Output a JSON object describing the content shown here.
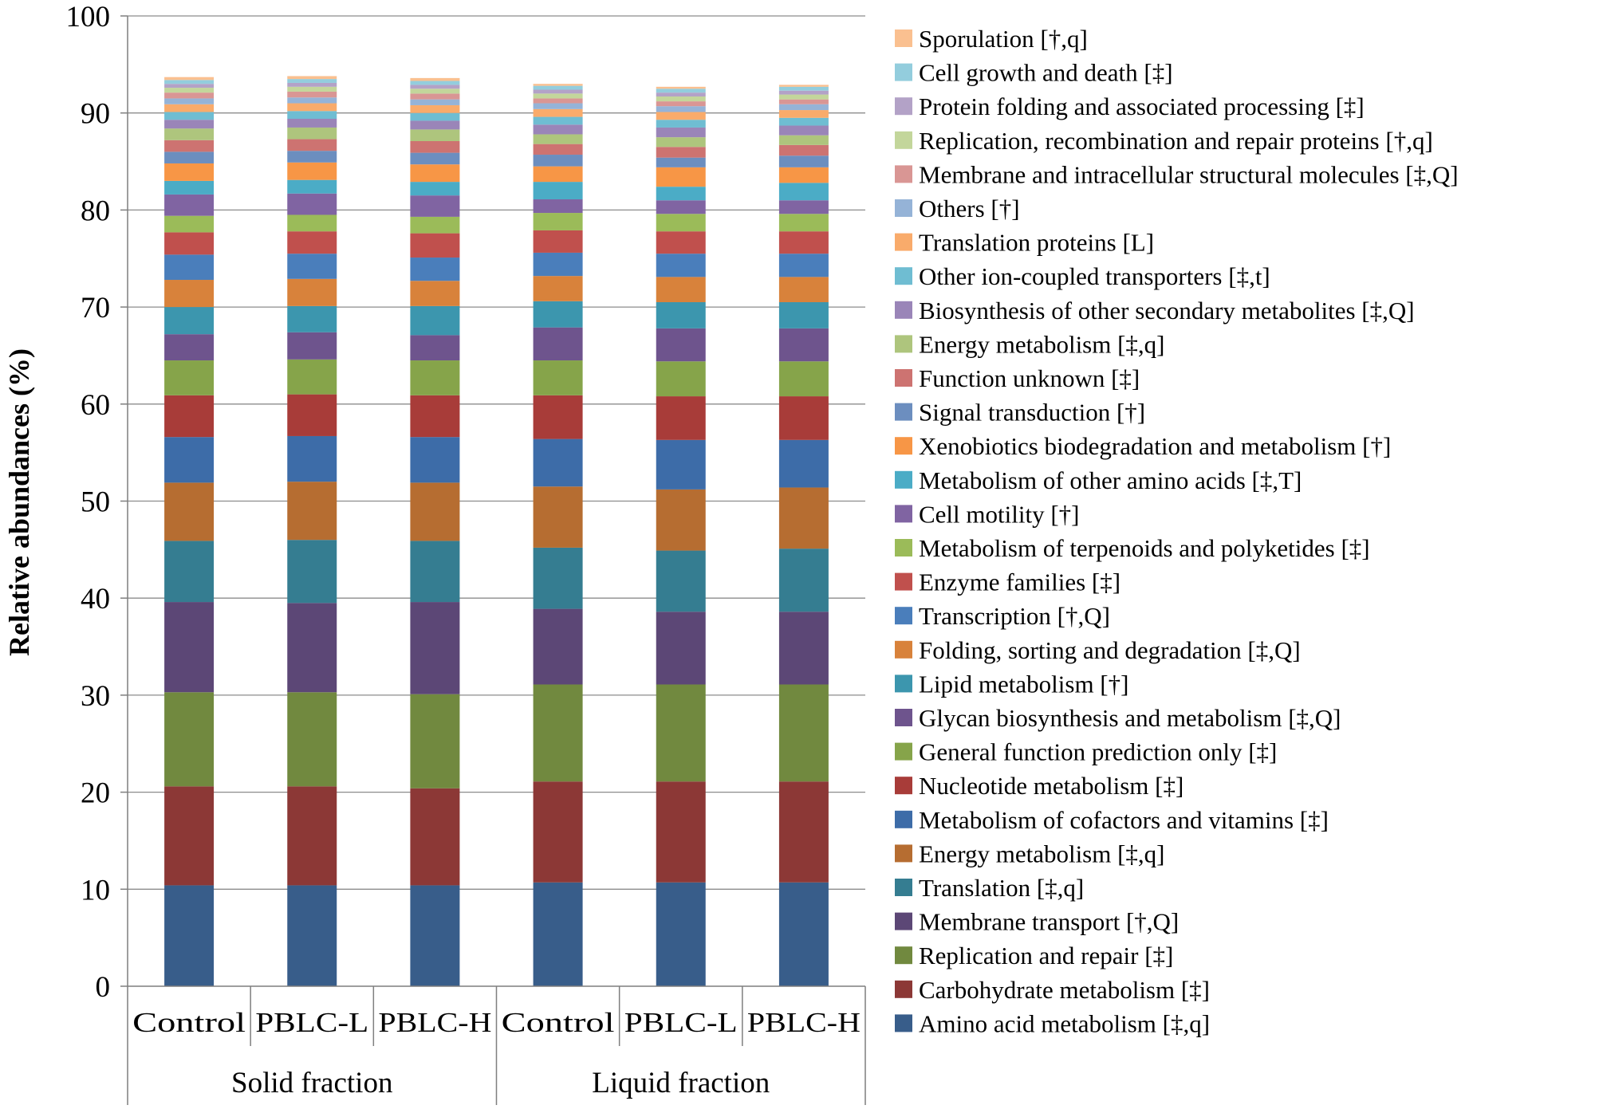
{
  "chart_data": {
    "type": "bar",
    "stacked": true,
    "ylabel": "Relative abundances (%)",
    "ylim": [
      0,
      100
    ],
    "ytick_step": 10,
    "grid": "horizontal major gridlines",
    "legend_position": "right",
    "categories": [
      "Control",
      "PBLC-L",
      "PBLC-H",
      "Control",
      "PBLC-L",
      "PBLC-H"
    ],
    "groups": [
      {
        "label": "Solid fraction",
        "span": 3
      },
      {
        "label": "Liquid fraction",
        "span": 3
      }
    ],
    "series": [
      {
        "name": "Amino acid metabolism [‡,q]",
        "color": "#385d8a",
        "values": [
          10.4,
          10.4,
          10.4,
          10.7,
          10.7,
          10.7
        ]
      },
      {
        "name": "Carbohydrate metabolism [‡]",
        "color": "#8c3836",
        "values": [
          10.2,
          10.2,
          10.0,
          10.4,
          10.4,
          10.4
        ]
      },
      {
        "name": "Replication and repair [‡]",
        "color": "#71893f",
        "values": [
          9.7,
          9.7,
          9.7,
          10.0,
          10.0,
          10.0
        ]
      },
      {
        "name": "Membrane transport [†,Q]",
        "color": "#5c4776",
        "values": [
          9.3,
          9.2,
          9.5,
          7.8,
          7.5,
          7.5
        ]
      },
      {
        "name": "Translation [‡,q]",
        "color": "#357d91",
        "values": [
          6.3,
          6.5,
          6.3,
          6.3,
          6.3,
          6.5
        ]
      },
      {
        "name": "Energy metabolism [‡,q]",
        "color": "#b66d31",
        "values": [
          6.0,
          6.0,
          6.0,
          6.3,
          6.3,
          6.3
        ]
      },
      {
        "name": "Metabolism of cofactors and vitamins [‡]",
        "color": "#3d6ca8",
        "values": [
          4.7,
          4.7,
          4.7,
          4.9,
          5.1,
          4.9
        ]
      },
      {
        "name": "Nucleotide metabolism [‡]",
        "color": "#a83c39",
        "values": [
          4.3,
          4.3,
          4.3,
          4.5,
          4.5,
          4.5
        ]
      },
      {
        "name": "General function prediction only [‡]",
        "color": "#86a44a",
        "values": [
          3.6,
          3.6,
          3.6,
          3.6,
          3.6,
          3.6
        ]
      },
      {
        "name": "Glycan biosynthesis and metabolism [‡,Q]",
        "color": "#6e548d",
        "values": [
          2.7,
          2.8,
          2.6,
          3.4,
          3.4,
          3.4
        ]
      },
      {
        "name": "Lipid metabolism [†]",
        "color": "#3c96ae",
        "values": [
          2.8,
          2.7,
          3.0,
          2.7,
          2.7,
          2.7
        ]
      },
      {
        "name": "Folding, sorting and degradation [‡,Q]",
        "color": "#d8823b",
        "values": [
          2.8,
          2.8,
          2.6,
          2.6,
          2.6,
          2.6
        ]
      },
      {
        "name": "Transcription [†,Q]",
        "color": "#4a7ebb",
        "values": [
          2.6,
          2.6,
          2.4,
          2.4,
          2.4,
          2.4
        ]
      },
      {
        "name": "Enzyme families [‡]",
        "color": "#c0504d",
        "values": [
          2.3,
          2.3,
          2.5,
          2.3,
          2.3,
          2.3
        ]
      },
      {
        "name": "Metabolism of terpenoids and polyketides [‡]",
        "color": "#9bbb59",
        "values": [
          1.7,
          1.7,
          1.7,
          1.8,
          1.8,
          1.8
        ]
      },
      {
        "name": "Cell motility [†]",
        "color": "#8064a2",
        "values": [
          2.2,
          2.2,
          2.2,
          1.4,
          1.4,
          1.4
        ]
      },
      {
        "name": "Metabolism of other amino acids [‡,T]",
        "color": "#4bacc6",
        "values": [
          1.4,
          1.4,
          1.4,
          1.8,
          1.4,
          1.8
        ]
      },
      {
        "name": "Xenobiotics biodegradation and metabolism [†]",
        "color": "#f79646",
        "values": [
          1.8,
          1.8,
          1.8,
          1.6,
          2.0,
          1.6
        ]
      },
      {
        "name": "Signal transduction [†]",
        "color": "#6c8ebf",
        "values": [
          1.2,
          1.2,
          1.2,
          1.2,
          1.0,
          1.2
        ]
      },
      {
        "name": "Function unknown [‡]",
        "color": "#cd7371",
        "values": [
          1.2,
          1.2,
          1.2,
          1.1,
          1.1,
          1.1
        ]
      },
      {
        "name": "Energy metabolism [‡,q]",
        "color": "#aec57d",
        "values": [
          1.2,
          1.2,
          1.2,
          1.0,
          1.0,
          1.0
        ]
      },
      {
        "name": "Biosynthesis of other secondary metabolites [‡,Q]",
        "color": "#9a85b8",
        "values": [
          0.9,
          0.9,
          0.9,
          1.0,
          1.0,
          1.0
        ]
      },
      {
        "name": "Other ion-coupled transporters [‡,t]",
        "color": "#6fbdd2",
        "values": [
          0.8,
          0.8,
          0.8,
          0.8,
          0.8,
          0.8
        ]
      },
      {
        "name": "Translation proteins [L]",
        "color": "#f9ab6b",
        "values": [
          0.8,
          0.8,
          0.8,
          0.8,
          0.8,
          0.8
        ]
      },
      {
        "name": "Others [†]",
        "color": "#95b3d7",
        "values": [
          0.6,
          0.6,
          0.6,
          0.6,
          0.6,
          0.6
        ]
      },
      {
        "name": "Membrane and intracellular structural molecules [‡,Q]",
        "color": "#d99694",
        "values": [
          0.6,
          0.6,
          0.6,
          0.5,
          0.5,
          0.5
        ]
      },
      {
        "name": "Replication, recombination and repair proteins [†,q]",
        "color": "#c3d69b",
        "values": [
          0.5,
          0.5,
          0.5,
          0.5,
          0.5,
          0.5
        ]
      },
      {
        "name": "Protein folding and associated processing [‡]",
        "color": "#b3a2c7",
        "values": [
          0.4,
          0.4,
          0.4,
          0.4,
          0.4,
          0.4
        ]
      },
      {
        "name": "Cell growth and death [‡]",
        "color": "#93cddd",
        "values": [
          0.4,
          0.4,
          0.4,
          0.4,
          0.4,
          0.4
        ]
      },
      {
        "name": "Sporulation [†,q]",
        "color": "#fac090",
        "values": [
          0.3,
          0.3,
          0.3,
          0.2,
          0.2,
          0.2
        ]
      }
    ]
  }
}
